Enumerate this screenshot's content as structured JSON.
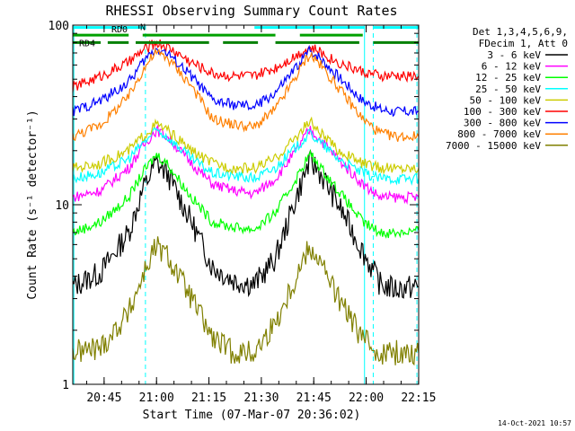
{
  "chart_data": {
    "type": "line",
    "title": "RHESSI Observing Summary Count Rates",
    "xlabel": "Start Time (07-Mar-07 20:36:02)",
    "ylabel": "Count Rate (s⁻¹ detector⁻¹)",
    "yscale": "log",
    "ylim": [
      1,
      100
    ],
    "xlim_minutes": [
      0,
      99
    ],
    "x_ticks": [
      "20:45",
      "21:00",
      "21:15",
      "21:30",
      "21:45",
      "22:00",
      "22:15"
    ],
    "x_tick_minutes": [
      8.97,
      23.97,
      38.97,
      53.97,
      68.97,
      83.97,
      98.97
    ],
    "y_ticks": [
      {
        "value": 1,
        "label": "1"
      },
      {
        "value": 10,
        "label": "10"
      },
      {
        "value": 100,
        "label": "100"
      }
    ],
    "legend": {
      "header": [
        "Det 1,3,4,5,6,9,",
        "FDecim 1, Att 0"
      ],
      "placement": "right"
    },
    "series": [
      {
        "name": "3 - 6 keV",
        "color": "#000000",
        "x": [
          0,
          8,
          16,
          20,
          23,
          24,
          27,
          34,
          40,
          46,
          52,
          58,
          64,
          67,
          68,
          70,
          76,
          83,
          88,
          92,
          99
        ],
        "y": [
          3.5,
          4.2,
          7,
          12,
          16,
          17,
          15,
          8,
          4.5,
          3.8,
          3.6,
          5,
          11,
          16,
          17,
          16,
          10,
          5.5,
          3.6,
          3.4,
          3.5
        ]
      },
      {
        "name": "6 - 12 keV",
        "color": "#ff00ff",
        "x": [
          0,
          8,
          16,
          20,
          23,
          24,
          27,
          34,
          40,
          46,
          52,
          58,
          64,
          67,
          68,
          70,
          76,
          83,
          88,
          92,
          99
        ],
        "y": [
          11,
          12,
          16,
          21,
          25,
          26,
          24,
          17,
          13,
          12,
          11.5,
          14,
          20,
          25,
          26,
          24,
          18,
          13,
          11,
          11,
          11
        ]
      },
      {
        "name": "12 - 25 keV",
        "color": "#00ff00",
        "x": [
          0,
          8,
          16,
          20,
          23,
          24,
          27,
          34,
          40,
          46,
          52,
          58,
          64,
          67,
          68,
          70,
          76,
          83,
          88,
          92,
          99
        ],
        "y": [
          7,
          8,
          11,
          15,
          18,
          19,
          17,
          11,
          8,
          7.5,
          7.3,
          9,
          14,
          18,
          19,
          17,
          12,
          8,
          7,
          7,
          7.2
        ]
      },
      {
        "name": "25 - 50 keV",
        "color": "#00ffff",
        "x": [
          0,
          8,
          16,
          20,
          23,
          24,
          27,
          34,
          40,
          46,
          52,
          58,
          64,
          67,
          68,
          70,
          76,
          83,
          88,
          92,
          99
        ],
        "y": [
          14,
          15,
          18,
          22,
          25,
          26,
          24,
          18,
          15,
          14.5,
          14,
          16,
          21,
          24,
          25,
          23,
          18,
          15,
          14,
          14,
          14
        ]
      },
      {
        "name": "50 - 100 keV",
        "color": "#cccc00",
        "x": [
          0,
          8,
          16,
          20,
          23,
          24,
          27,
          34,
          40,
          46,
          52,
          58,
          64,
          67,
          68,
          70,
          76,
          83,
          88,
          92,
          99
        ],
        "y": [
          16,
          17,
          20,
          24,
          27,
          28,
          26,
          20,
          17,
          16,
          16,
          18,
          24,
          28,
          29,
          26,
          20,
          17,
          16,
          16,
          16
        ]
      },
      {
        "name": "100 - 300 keV",
        "color": "#ff0000",
        "x": [
          0,
          8,
          16,
          20,
          23,
          24,
          27,
          34,
          40,
          46,
          52,
          58,
          64,
          67,
          68,
          70,
          76,
          83,
          88,
          92,
          99
        ],
        "y": [
          45,
          52,
          62,
          72,
          78,
          80,
          76,
          62,
          54,
          52,
          52,
          58,
          68,
          74,
          75,
          72,
          62,
          55,
          52,
          52,
          52
        ]
      },
      {
        "name": "300 - 800 keV",
        "color": "#0000ff",
        "x": [
          0,
          8,
          16,
          20,
          23,
          24,
          27,
          34,
          40,
          46,
          52,
          58,
          64,
          67,
          68,
          70,
          76,
          83,
          88,
          92,
          99
        ],
        "y": [
          33,
          38,
          48,
          62,
          72,
          74,
          70,
          52,
          38,
          36,
          35,
          42,
          58,
          70,
          72,
          68,
          52,
          38,
          34,
          33,
          33
        ]
      },
      {
        "name": "800 - 7000 keV",
        "color": "#ff8000",
        "x": [
          0,
          8,
          16,
          20,
          23,
          24,
          27,
          34,
          40,
          46,
          52,
          58,
          64,
          67,
          68,
          70,
          76,
          83,
          88,
          92,
          99
        ],
        "y": [
          24,
          28,
          40,
          56,
          68,
          70,
          66,
          46,
          30,
          28,
          27,
          34,
          52,
          66,
          68,
          63,
          45,
          30,
          25,
          24,
          24
        ]
      },
      {
        "name": "7000 - 15000 keV",
        "color": "#808000",
        "x": [
          0,
          8,
          16,
          20,
          23,
          24,
          27,
          34,
          40,
          46,
          52,
          58,
          64,
          67,
          68,
          70,
          76,
          83,
          88,
          92,
          99
        ],
        "y": [
          1.5,
          1.6,
          2.5,
          4,
          5.5,
          5.8,
          5.2,
          3,
          1.8,
          1.5,
          1.5,
          2.2,
          4,
          5.5,
          5.8,
          5.2,
          3,
          1.8,
          1.5,
          1.5,
          1.5
        ]
      }
    ],
    "flag_bars": [
      {
        "label": "N",
        "color": "#00ffff",
        "y": 97,
        "ranges": [
          [
            0,
            20.5
          ],
          [
            52,
            83.5
          ],
          [
            86,
            99
          ]
        ]
      },
      {
        "label": "RD0",
        "color": "#00a000",
        "y": 88,
        "ranges": [
          [
            0,
            16
          ],
          [
            20,
            58
          ],
          [
            65,
            83
          ]
        ]
      },
      {
        "label": "RD4",
        "color": "#008000",
        "y": 80,
        "ranges": [
          [
            0,
            8
          ],
          [
            10,
            16
          ],
          [
            18,
            39
          ],
          [
            43,
            53
          ],
          [
            58,
            82
          ],
          [
            86,
            99
          ]
        ]
      }
    ],
    "vertical_markers": [
      {
        "minute": 0.3,
        "style": "solid",
        "color": "#00ffff"
      },
      {
        "minute": 20.8,
        "style": "dashed",
        "color": "#00ffff"
      },
      {
        "minute": 83.5,
        "style": "solid",
        "color": "#00ffff"
      },
      {
        "minute": 86.0,
        "style": "dashed",
        "color": "#00ffff"
      },
      {
        "minute": 98.5,
        "style": "dashed",
        "color": "#00ffff"
      }
    ]
  },
  "footer": {
    "generated": "14-Oct-2021 10:57"
  }
}
